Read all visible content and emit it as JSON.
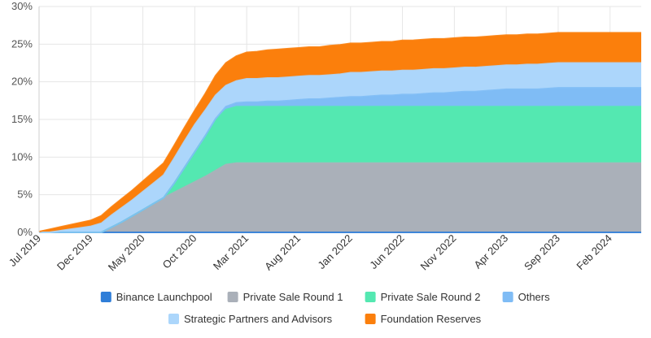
{
  "chart_data": {
    "type": "area",
    "stacked": true,
    "title": "",
    "xlabel": "",
    "ylabel": "",
    "ylim": [
      0,
      30
    ],
    "y_ticks": [
      "0%",
      "5%",
      "10%",
      "15%",
      "20%",
      "25%",
      "30%"
    ],
    "x_tick_labels": [
      "Jul 2019",
      "Dec 2019",
      "May 2020",
      "Oct 2020",
      "Mar 2021",
      "Aug 2021",
      "Jan 2022",
      "Jun 2022",
      "Nov 2022",
      "Apr 2023",
      "Sep 2023",
      "Feb 2024"
    ],
    "grid": true,
    "legend_position": "bottom",
    "x": [
      "Jul 2019",
      "Aug 2019",
      "Sep 2019",
      "Oct 2019",
      "Nov 2019",
      "Dec 2019",
      "Jan 2020",
      "Feb 2020",
      "Mar 2020",
      "Apr 2020",
      "May 2020",
      "Jun 2020",
      "Jul 2020",
      "Aug 2020",
      "Sep 2020",
      "Oct 2020",
      "Nov 2020",
      "Dec 2020",
      "Jan 2021",
      "Feb 2021",
      "Mar 2021",
      "Apr 2021",
      "May 2021",
      "Jun 2021",
      "Jul 2021",
      "Aug 2021",
      "Sep 2021",
      "Oct 2021",
      "Nov 2021",
      "Dec 2021",
      "Jan 2022",
      "Feb 2022",
      "Mar 2022",
      "Apr 2022",
      "May 2022",
      "Jun 2022",
      "Jul 2022",
      "Aug 2022",
      "Sep 2022",
      "Oct 2022",
      "Nov 2022",
      "Dec 2022",
      "Jan 2023",
      "Feb 2023",
      "Mar 2023",
      "Apr 2023",
      "May 2023",
      "Jun 2023",
      "Jul 2023",
      "Aug 2023",
      "Sep 2023",
      "Oct 2023",
      "Nov 2023",
      "Dec 2023",
      "Jan 2024",
      "Feb 2024",
      "Mar 2024",
      "Apr 2024",
      "May 2024"
    ],
    "series": [
      {
        "name": "Binance Launchpool",
        "color": "#2f7ed8",
        "values": [
          0,
          0,
          0,
          0,
          0,
          0,
          0,
          0,
          0,
          0,
          0,
          0,
          0,
          0,
          0,
          0,
          0,
          0,
          0,
          0,
          0,
          0,
          0,
          0,
          0,
          0,
          0,
          0,
          0,
          0,
          0,
          0,
          0,
          0,
          0,
          0,
          0,
          0,
          0,
          0,
          0,
          0,
          0,
          0,
          0,
          0,
          0,
          0,
          0,
          0,
          0,
          0,
          0,
          0,
          0,
          0,
          0,
          0,
          0
        ]
      },
      {
        "name": "Private Sale Round 1",
        "color": "#aab0b9",
        "values": [
          0,
          0,
          0,
          0,
          0,
          0,
          0,
          0.7,
          1.4,
          2.2,
          3.0,
          3.8,
          4.6,
          5.3,
          6.0,
          6.7,
          7.4,
          8.2,
          9.0,
          9.2,
          9.2,
          9.2,
          9.2,
          9.2,
          9.2,
          9.2,
          9.2,
          9.2,
          9.2,
          9.2,
          9.2,
          9.2,
          9.2,
          9.2,
          9.2,
          9.2,
          9.2,
          9.2,
          9.2,
          9.2,
          9.2,
          9.2,
          9.2,
          9.2,
          9.2,
          9.2,
          9.2,
          9.2,
          9.2,
          9.2,
          9.2,
          9.2,
          9.2,
          9.2,
          9.2,
          9.2,
          9.2,
          9.2,
          9.2
        ]
      },
      {
        "name": "Private Sale Round 2",
        "color": "#54e8b1",
        "values": [
          0,
          0,
          0,
          0,
          0,
          0,
          0,
          0,
          0,
          0,
          0,
          0,
          0,
          1.2,
          2.6,
          4.0,
          5.4,
          6.7,
          7.3,
          7.5,
          7.5,
          7.5,
          7.5,
          7.5,
          7.5,
          7.5,
          7.5,
          7.5,
          7.5,
          7.5,
          7.5,
          7.5,
          7.5,
          7.5,
          7.5,
          7.5,
          7.5,
          7.5,
          7.5,
          7.5,
          7.5,
          7.5,
          7.5,
          7.5,
          7.5,
          7.5,
          7.5,
          7.5,
          7.5,
          7.5,
          7.5,
          7.5,
          7.5,
          7.5,
          7.5,
          7.5,
          7.5,
          7.5,
          7.5
        ]
      },
      {
        "name": "Others",
        "color": "#7fbcf5",
        "values": [
          0,
          0,
          0,
          0,
          0,
          0,
          0,
          0,
          0,
          0,
          0,
          0,
          0,
          0,
          0,
          0,
          0,
          0.2,
          0.4,
          0.5,
          0.6,
          0.6,
          0.7,
          0.7,
          0.8,
          0.9,
          1.0,
          1.0,
          1.1,
          1.2,
          1.3,
          1.3,
          1.4,
          1.5,
          1.5,
          1.6,
          1.6,
          1.7,
          1.8,
          1.8,
          1.9,
          2.0,
          2.0,
          2.1,
          2.2,
          2.3,
          2.3,
          2.3,
          2.3,
          2.4,
          2.5,
          2.5,
          2.5,
          2.5,
          2.5,
          2.5,
          2.5,
          2.5,
          2.5
        ]
      },
      {
        "name": "Strategic Partners and Advisors",
        "color": "#acd6fb",
        "values": [
          0,
          0,
          0.2,
          0.4,
          0.6,
          0.8,
          1.2,
          1.6,
          1.9,
          2.1,
          2.4,
          2.7,
          3.0,
          3.3,
          3.5,
          3.6,
          3.4,
          3.1,
          2.8,
          2.9,
          3.1,
          3.1,
          3.1,
          3.1,
          3.1,
          3.1,
          3.1,
          3.1,
          3.1,
          3.1,
          3.2,
          3.2,
          3.2,
          3.2,
          3.2,
          3.2,
          3.2,
          3.2,
          3.2,
          3.2,
          3.2,
          3.2,
          3.2,
          3.2,
          3.2,
          3.2,
          3.2,
          3.3,
          3.3,
          3.3,
          3.3,
          3.3,
          3.3,
          3.3,
          3.3,
          3.3,
          3.3,
          3.3,
          3.3
        ]
      },
      {
        "name": "Foundation Reserves",
        "color": "#fb7f0c",
        "values": [
          0.1,
          0.4,
          0.5,
          0.6,
          0.7,
          0.8,
          1.0,
          1.1,
          1.2,
          1.3,
          1.4,
          1.5,
          1.6,
          1.7,
          1.8,
          1.9,
          2.2,
          2.6,
          3.0,
          3.3,
          3.5,
          3.6,
          3.7,
          3.8,
          3.8,
          3.8,
          3.8,
          3.8,
          3.9,
          3.9,
          3.9,
          3.9,
          3.9,
          3.9,
          3.9,
          4.0,
          4.0,
          4.0,
          4.0,
          4.0,
          4.0,
          4.0,
          4.0,
          4.0,
          4.0,
          4.0,
          4.0,
          4.0,
          4.0,
          4.0,
          4.0,
          4.0,
          4.0,
          4.0,
          4.0,
          4.0,
          4.0,
          4.0,
          4.0
        ]
      }
    ]
  }
}
